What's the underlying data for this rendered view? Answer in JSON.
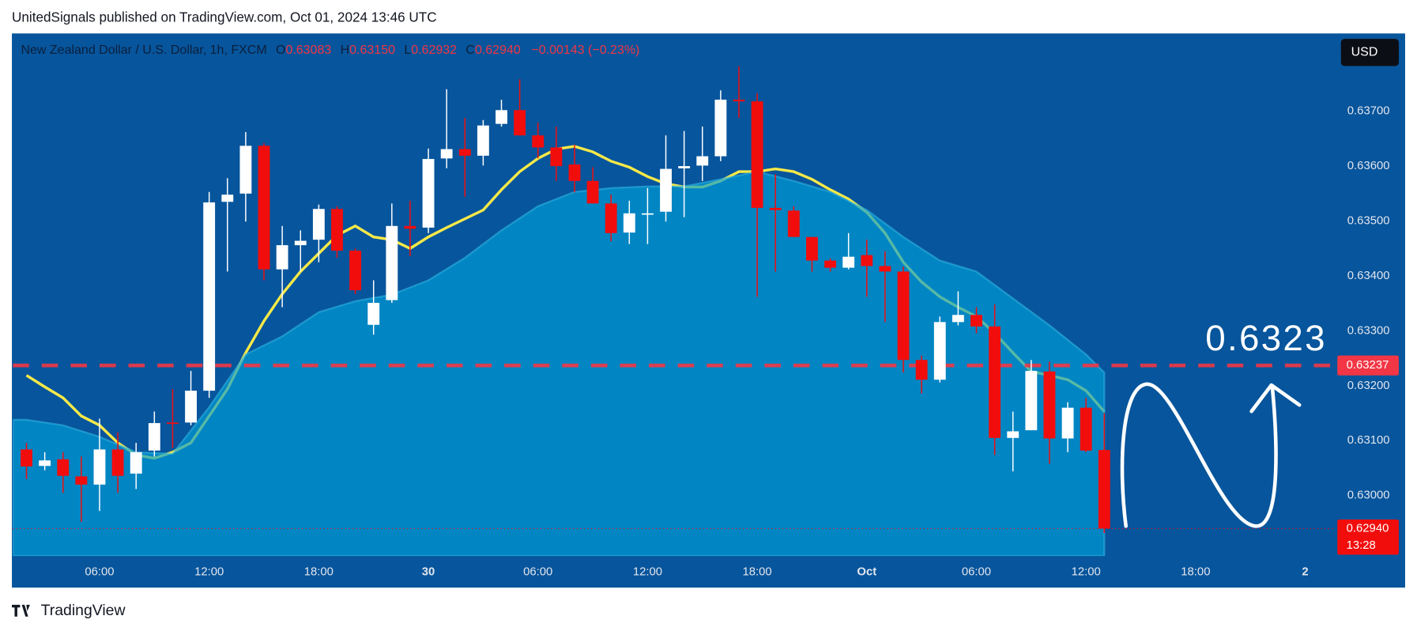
{
  "publisher": "UnitedSignals published on TradingView.com, Oct 01, 2024 13:46 UTC",
  "footer": "TradingView",
  "currency": "USD",
  "legend": {
    "o_label": "O",
    "open": "0.63083",
    "h_label": "H",
    "high": "0.63150",
    "l_label": "L",
    "low": "0.62932",
    "c_label": "C",
    "close": "0.62940",
    "change": "−0.00143 (−0.23%)"
  },
  "chart_data": {
    "type": "candlestick",
    "title": "New Zealand Dollar / U.S. Dollar, 1h, FXCM",
    "up_color": "#ffffff",
    "down_color": "#f20d0d",
    "x": [
      2,
      3,
      4,
      5,
      6,
      7,
      8,
      9,
      10,
      11,
      12,
      13,
      14,
      15,
      16,
      17,
      18,
      19,
      20,
      21,
      22,
      23,
      24,
      25,
      26,
      27,
      28,
      29,
      30,
      31,
      32,
      33,
      34,
      35,
      36,
      37,
      38,
      39,
      40,
      41,
      42,
      43,
      44,
      45,
      46,
      47,
      48,
      49,
      50,
      51,
      52,
      53,
      54,
      55,
      56,
      57,
      58,
      59,
      60,
      61
    ],
    "open": [
      0.63084,
      0.63054,
      0.63066,
      0.63035,
      0.6302,
      0.63084,
      0.6304,
      0.63082,
      0.63133,
      0.63133,
      0.63191,
      0.63535,
      0.6355,
      0.63637,
      0.63412,
      0.63456,
      0.63466,
      0.63522,
      0.63446,
      0.63311,
      0.63356,
      0.63491,
      0.63488,
      0.63614,
      0.63631,
      0.63619,
      0.63677,
      0.63702,
      0.63656,
      0.63634,
      0.63603,
      0.63573,
      0.63532,
      0.63479,
      0.63514,
      0.63517,
      0.63596,
      0.63601,
      0.63618,
      0.63721,
      0.63718,
      0.63524,
      0.63519,
      0.63471,
      0.63428,
      0.63415,
      0.63438,
      0.63418,
      0.63408,
      0.63247,
      0.63211,
      0.63316,
      0.63329,
      0.63308,
      0.63105,
      0.63119,
      0.63226,
      0.63104,
      0.6316,
      0.63083
    ],
    "high": [
      0.63096,
      0.63079,
      0.63079,
      0.63071,
      0.6314,
      0.63115,
      0.63096,
      0.63153,
      0.63194,
      0.63227,
      0.63553,
      0.63578,
      0.63662,
      0.63642,
      0.63491,
      0.63483,
      0.6353,
      0.63527,
      0.6345,
      0.63392,
      0.63532,
      0.63537,
      0.63632,
      0.6374,
      0.63688,
      0.63684,
      0.63721,
      0.63758,
      0.63679,
      0.63672,
      0.63639,
      0.63598,
      0.63548,
      0.63537,
      0.6356,
      0.63656,
      0.63664,
      0.63672,
      0.63738,
      0.63782,
      0.63733,
      0.63585,
      0.63527,
      0.63471,
      0.63432,
      0.63478,
      0.63466,
      0.63445,
      0.63417,
      0.63255,
      0.63326,
      0.63372,
      0.63343,
      0.63348,
      0.63153,
      0.63247,
      0.63244,
      0.6317,
      0.63178,
      0.6315
    ],
    "low": [
      0.6303,
      0.63046,
      0.63005,
      0.62952,
      0.62972,
      0.63005,
      0.63012,
      0.63071,
      0.63087,
      0.63128,
      0.63178,
      0.63408,
      0.63499,
      0.63392,
      0.63343,
      0.63408,
      0.63425,
      0.63433,
      0.63367,
      0.63293,
      0.63351,
      0.63436,
      0.63478,
      0.63596,
      0.63544,
      0.63601,
      0.63672,
      0.63656,
      0.63614,
      0.63573,
      0.63552,
      0.63532,
      0.63463,
      0.63458,
      0.63458,
      0.63499,
      0.63507,
      0.63573,
      0.63609,
      0.63688,
      0.63362,
      0.63408,
      0.63471,
      0.63408,
      0.63408,
      0.63412,
      0.63362,
      0.63316,
      0.63224,
      0.63186,
      0.63206,
      0.6331,
      0.63296,
      0.63074,
      0.63044,
      0.63119,
      0.63058,
      0.63079,
      0.63079,
      0.62932
    ],
    "close": [
      0.63053,
      0.63064,
      0.63036,
      0.6302,
      0.63084,
      0.63036,
      0.63079,
      0.63132,
      0.63132,
      0.63191,
      0.63534,
      0.63548,
      0.63637,
      0.63412,
      0.63456,
      0.63464,
      0.63522,
      0.63446,
      0.63374,
      0.63351,
      0.63491,
      0.63486,
      0.63613,
      0.63631,
      0.63619,
      0.63674,
      0.63702,
      0.63656,
      0.63634,
      0.636,
      0.63573,
      0.63532,
      0.63478,
      0.63514,
      0.63514,
      0.63595,
      0.636,
      0.63618,
      0.63721,
      0.63718,
      0.63524,
      0.6352,
      0.63471,
      0.63428,
      0.63415,
      0.63435,
      0.63418,
      0.63408,
      0.63247,
      0.63211,
      0.63316,
      0.63329,
      0.63308,
      0.63105,
      0.63117,
      0.63227,
      0.63104,
      0.6316,
      0.63082,
      0.6294
    ],
    "ema": {
      "color": "#f7e948",
      "values": [
        0.63219,
        0.63198,
        0.63178,
        0.63145,
        0.63128,
        0.63096,
        0.63074,
        0.63068,
        0.63079,
        0.63096,
        0.63145,
        0.63194,
        0.6326,
        0.63318,
        0.63367,
        0.63408,
        0.63441,
        0.63474,
        0.63491,
        0.63471,
        0.63466,
        0.6345,
        0.63471,
        0.63488,
        0.63504,
        0.6352,
        0.63557,
        0.6359,
        0.63614,
        0.63631,
        0.63636,
        0.63626,
        0.63609,
        0.63598,
        0.63581,
        0.63568,
        0.63562,
        0.63562,
        0.63573,
        0.6359,
        0.6359,
        0.63595,
        0.6359,
        0.63576,
        0.63557,
        0.6354,
        0.63516,
        0.63478,
        0.63425,
        0.63389,
        0.63362,
        0.63343,
        0.63326,
        0.63296,
        0.6326,
        0.63226,
        0.63219,
        0.63211,
        0.63191,
        0.63153
      ]
    },
    "band": {
      "color": "#00a0d8",
      "x": [
        2,
        4,
        6,
        8,
        10,
        12,
        14,
        16,
        18,
        20,
        22,
        24,
        26,
        28,
        30,
        32,
        34,
        36,
        38,
        40,
        42,
        44,
        46,
        48,
        50,
        52,
        54,
        56,
        58,
        60,
        61
      ],
      "values": [
        0.63138,
        0.63128,
        0.63107,
        0.63079,
        0.63076,
        0.63161,
        0.63257,
        0.6329,
        0.63334,
        0.63354,
        0.63366,
        0.63392,
        0.63433,
        0.63483,
        0.63527,
        0.63553,
        0.6356,
        0.63563,
        0.63563,
        0.63576,
        0.6359,
        0.63573,
        0.63553,
        0.6352,
        0.63471,
        0.63428,
        0.63408,
        0.63359,
        0.6331,
        0.63257,
        0.63224
      ]
    },
    "price_line": {
      "value": 0.63237,
      "label": "0.63237",
      "color": "#f23645"
    },
    "last_price": {
      "value": 0.6294,
      "label": "0.62940",
      "countdown": "13:28",
      "color": "#f20d0d"
    },
    "annotation": "0.6323",
    "xlim": [
      1.25,
      73.66
    ],
    "xticks": [
      {
        "value": 6,
        "label": "06:00"
      },
      {
        "value": 12,
        "label": "12:00"
      },
      {
        "value": 18,
        "label": "18:00"
      },
      {
        "value": 24,
        "label": "30"
      },
      {
        "value": 30,
        "label": "06:00"
      },
      {
        "value": 36,
        "label": "12:00"
      },
      {
        "value": 42,
        "label": "18:00"
      },
      {
        "value": 48,
        "label": "Oct"
      },
      {
        "value": 54,
        "label": "06:00"
      },
      {
        "value": 60,
        "label": "12:00"
      },
      {
        "value": 66,
        "label": "18:00"
      },
      {
        "value": 72,
        "label": "2"
      }
    ],
    "ylim": [
      0.6289,
      0.6384
    ],
    "yticks": [
      {
        "value": 0.63,
        "label": "0.63000"
      },
      {
        "value": 0.631,
        "label": "0.63100"
      },
      {
        "value": 0.632,
        "label": "0.63200"
      },
      {
        "value": 0.633,
        "label": "0.63300"
      },
      {
        "value": 0.634,
        "label": "0.63400"
      },
      {
        "value": 0.635,
        "label": "0.63500"
      },
      {
        "value": 0.636,
        "label": "0.63600"
      },
      {
        "value": 0.637,
        "label": "0.63700"
      }
    ],
    "grid": false
  }
}
